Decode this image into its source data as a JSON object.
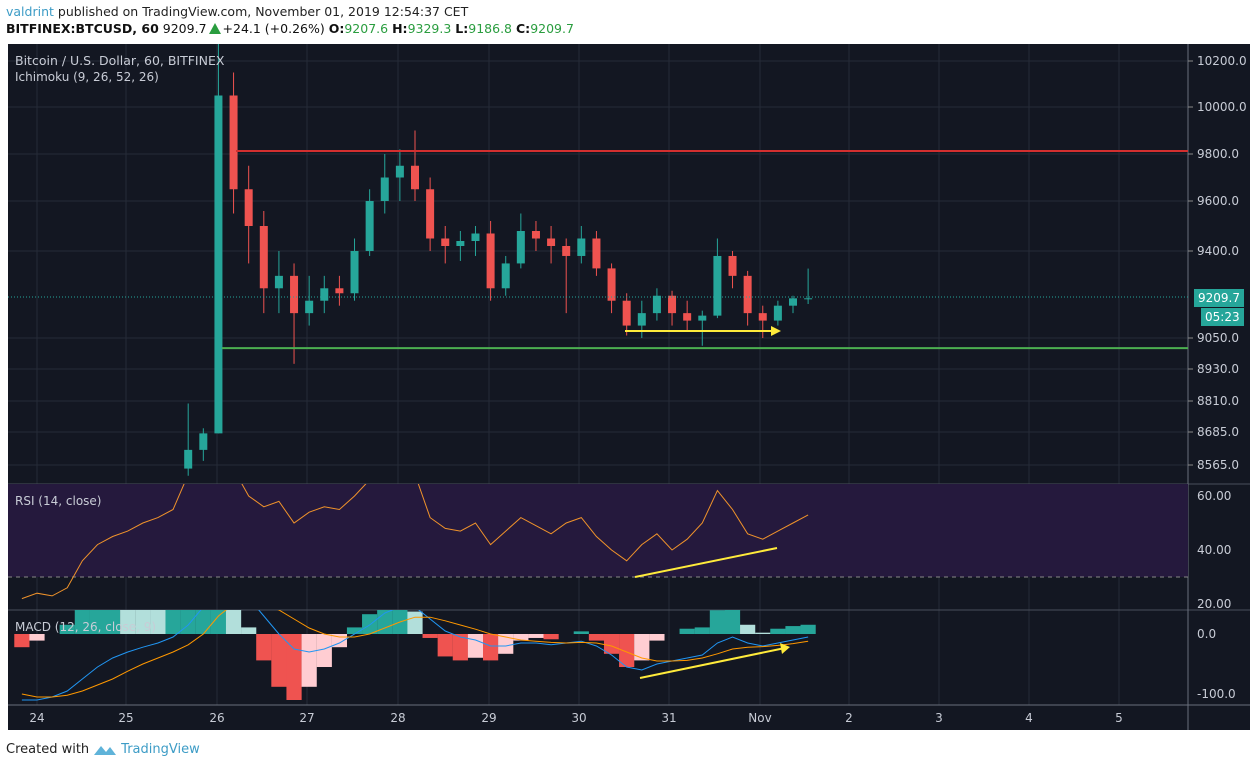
{
  "header": {
    "user": "valdrint",
    "published": "published on TradingView.com, November 01, 2019 12:54:37 CET",
    "symbol": "BITFINEX:BTCUSD, 60",
    "last": "9209.7",
    "change": "+24.1 (+0.26%)",
    "o_label": "O:",
    "o": "9207.6",
    "h_label": "H:",
    "h": "9329.3",
    "l_label": "L:",
    "l": "9186.8",
    "c_label": "C:",
    "c": "9209.7",
    "change_icon": "triangle-up-icon"
  },
  "legend": {
    "title": "Bitcoin / U.S. Dollar, 60, BITFINEX",
    "indicator": "Ichimoku (9, 26, 52, 26)",
    "rsi": "RSI (14, close)",
    "macd": "MACD (12, 26, close, 9)"
  },
  "price_tag": "9209.7",
  "countdown": "05:23",
  "footer": {
    "created": "Created with",
    "brand": "TradingView",
    "logo_icon": "tradingview-logo-icon"
  },
  "colors": {
    "background": "#131722",
    "up": "#26a69a",
    "down": "#ef5350",
    "resistance": "#d32f2f",
    "support": "#4caf50",
    "annotation": "#ffeb3b",
    "rsi": "#f0932b",
    "macd": "#2196f3",
    "signal": "#ff9800"
  },
  "chart_data": [
    {
      "type": "candlestick",
      "timeframe": "4h (approximated from 60 min)",
      "y_ticks": [
        "10200.0",
        "10000.0",
        "9800.0",
        "9600.0",
        "9400.0",
        "9050.0",
        "8930.0",
        "8810.0",
        "8685.0",
        "8565.0"
      ],
      "x_ticks": [
        "24",
        "25",
        "26",
        "27",
        "28",
        "29",
        "30",
        "31",
        "Nov",
        "2",
        "3",
        "4",
        "5"
      ],
      "levels": {
        "resistance": 9813,
        "support": 9011
      },
      "candles": [
        [
          8550,
          8800,
          8520,
          8620
        ],
        [
          8620,
          8700,
          8580,
          8680
        ],
        [
          8680,
          10350,
          8680,
          10050
        ],
        [
          10050,
          10150,
          9550,
          9650
        ],
        [
          9650,
          9750,
          9350,
          9500
        ],
        [
          9500,
          9560,
          9150,
          9250
        ],
        [
          9250,
          9400,
          9150,
          9300
        ],
        [
          9300,
          9350,
          8950,
          9150
        ],
        [
          9150,
          9300,
          9100,
          9200
        ],
        [
          9200,
          9300,
          9150,
          9250
        ],
        [
          9250,
          9300,
          9180,
          9230
        ],
        [
          9230,
          9450,
          9200,
          9400
        ],
        [
          9400,
          9650,
          9380,
          9600
        ],
        [
          9600,
          9800,
          9550,
          9700
        ],
        [
          9700,
          9820,
          9600,
          9750
        ],
        [
          9750,
          9900,
          9600,
          9650
        ],
        [
          9650,
          9700,
          9400,
          9450
        ],
        [
          9450,
          9500,
          9350,
          9420
        ],
        [
          9420,
          9480,
          9360,
          9440
        ],
        [
          9440,
          9500,
          9380,
          9470
        ],
        [
          9470,
          9520,
          9200,
          9250
        ],
        [
          9250,
          9380,
          9220,
          9350
        ],
        [
          9350,
          9550,
          9330,
          9480
        ],
        [
          9480,
          9520,
          9400,
          9450
        ],
        [
          9450,
          9500,
          9350,
          9420
        ],
        [
          9420,
          9450,
          9150,
          9380
        ],
        [
          9380,
          9500,
          9350,
          9450
        ],
        [
          9450,
          9480,
          9300,
          9330
        ],
        [
          9330,
          9350,
          9150,
          9200
        ],
        [
          9200,
          9230,
          9060,
          9100
        ],
        [
          9100,
          9200,
          9050,
          9150
        ],
        [
          9150,
          9250,
          9120,
          9220
        ],
        [
          9220,
          9240,
          9100,
          9150
        ],
        [
          9150,
          9200,
          9080,
          9120
        ],
        [
          9120,
          9160,
          9020,
          9140
        ],
        [
          9140,
          9450,
          9130,
          9380
        ],
        [
          9380,
          9400,
          9250,
          9300
        ],
        [
          9300,
          9320,
          9100,
          9150
        ],
        [
          9150,
          9180,
          9050,
          9120
        ],
        [
          9120,
          9200,
          9100,
          9180
        ],
        [
          9180,
          9220,
          9150,
          9209.7
        ],
        [
          9207.6,
          9329.3,
          9186.8,
          9209.7
        ]
      ]
    },
    {
      "type": "line",
      "name": "RSI (14, close)",
      "y_ticks": [
        "60.00",
        "40.00",
        "20.00"
      ],
      "band": [
        30,
        70
      ],
      "values": [
        22,
        24,
        23,
        26,
        36,
        42,
        45,
        47,
        50,
        52,
        55,
        68,
        78,
        80,
        70,
        60,
        56,
        58,
        50,
        54,
        56,
        55,
        60,
        66,
        70,
        72,
        68,
        52,
        48,
        47,
        50,
        42,
        47,
        52,
        49,
        46,
        50,
        52,
        45,
        40,
        36,
        42,
        46,
        40,
        44,
        50,
        62,
        55,
        46,
        44,
        47,
        50,
        53
      ]
    },
    {
      "type": "line",
      "name": "MACD (12, 26, close, 9)",
      "y_ticks": [
        "0.0",
        "-100.0"
      ],
      "macd": [
        -110,
        -110,
        -105,
        -95,
        -75,
        -55,
        -40,
        -30,
        -22,
        -15,
        -5,
        15,
        45,
        90,
        85,
        60,
        30,
        0,
        -25,
        -30,
        -25,
        -15,
        0,
        15,
        35,
        45,
        45,
        25,
        5,
        -5,
        -10,
        -20,
        -20,
        -15,
        -15,
        -18,
        -15,
        -12,
        -20,
        -35,
        -55,
        -60,
        -50,
        -45,
        -40,
        -35,
        -15,
        -5,
        -15,
        -20,
        -15,
        -10,
        -5
      ],
      "signal": [
        -100,
        -105,
        -105,
        -102,
        -95,
        -85,
        -75,
        -62,
        -50,
        -40,
        -30,
        -18,
        0,
        30,
        50,
        55,
        50,
        40,
        25,
        10,
        0,
        -5,
        -5,
        0,
        10,
        20,
        28,
        28,
        22,
        15,
        8,
        0,
        -5,
        -10,
        -12,
        -14,
        -15,
        -14,
        -15,
        -20,
        -30,
        -40,
        -45,
        -45,
        -44,
        -40,
        -33,
        -25,
        -22,
        -21,
        -19,
        -16,
        -12
      ]
    }
  ]
}
